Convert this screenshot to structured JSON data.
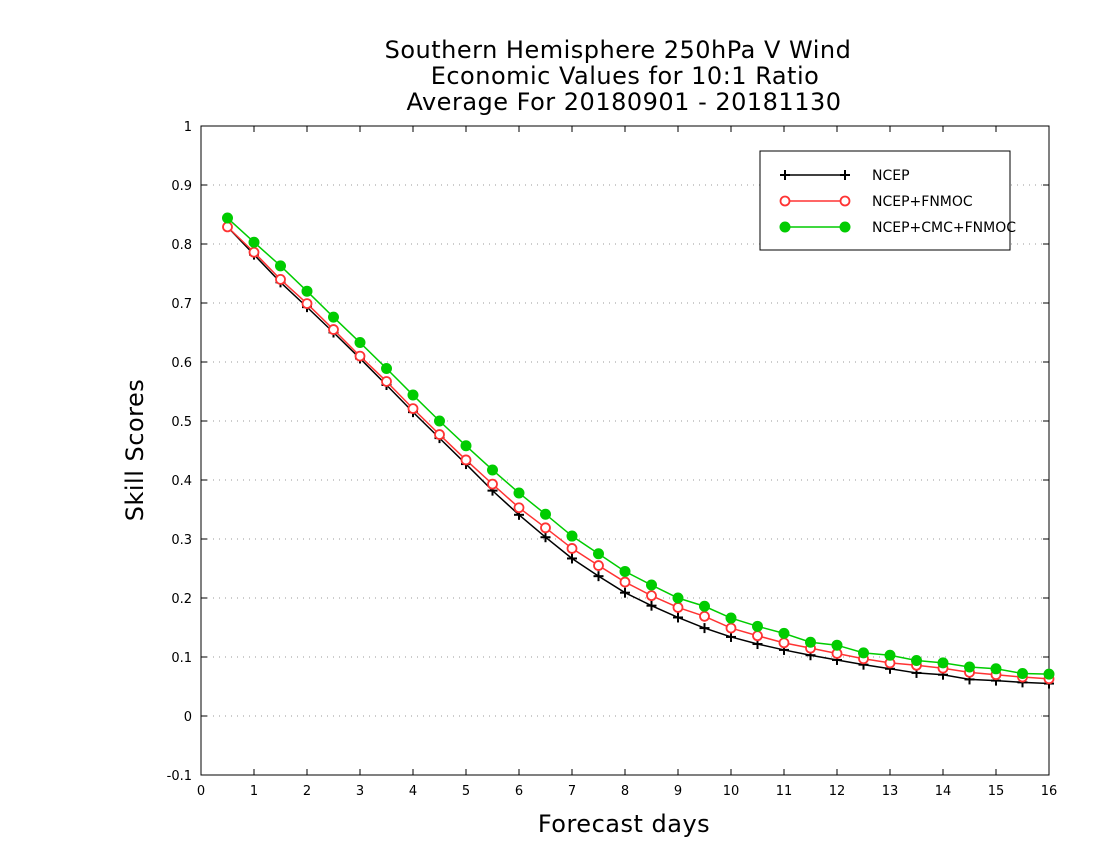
{
  "chart_data": {
    "type": "line",
    "title": [
      "Southern Hemisphere 250hPa V Wind",
      "Economic Values for 10:1 Ratio",
      "Average For 20180901 - 20181130"
    ],
    "xlabel": "Forecast days",
    "ylabel": "Skill Scores",
    "xlim": [
      0,
      16
    ],
    "ylim": [
      -0.1,
      1
    ],
    "x_ticks": [
      0,
      1,
      2,
      3,
      4,
      5,
      6,
      7,
      8,
      9,
      10,
      11,
      12,
      13,
      14,
      15,
      16
    ],
    "y_ticks": [
      -0.1,
      0,
      0.1,
      0.2,
      0.3,
      0.4,
      0.5,
      0.6,
      0.7,
      0.8,
      0.9,
      1
    ],
    "y_tick_labels": [
      "-0.1",
      "0",
      "0.1",
      "0.2",
      "0.3",
      "0.4",
      "0.5",
      "0.6",
      "0.7",
      "0.8",
      "0.9",
      "1"
    ],
    "grid": true,
    "legend_position": "top-right",
    "x": [
      0.5,
      1,
      1.5,
      2,
      2.5,
      3,
      3.5,
      4,
      4.5,
      5,
      5.5,
      6,
      6.5,
      7,
      7.5,
      8,
      8.5,
      9,
      9.5,
      10,
      10.5,
      11,
      11.5,
      12,
      12.5,
      13,
      13.5,
      14,
      14.5,
      15,
      15.5,
      16
    ],
    "series": [
      {
        "name": "NCEP",
        "color": "#000000",
        "marker": "plus",
        "values": [
          0.829,
          0.782,
          0.735,
          0.693,
          0.65,
          0.606,
          0.561,
          0.515,
          0.471,
          0.427,
          0.382,
          0.341,
          0.303,
          0.267,
          0.237,
          0.209,
          0.187,
          0.167,
          0.149,
          0.134,
          0.122,
          0.112,
          0.103,
          0.095,
          0.087,
          0.08,
          0.073,
          0.07,
          0.062,
          0.06,
          0.057,
          0.055
        ]
      },
      {
        "name": "NCEP+FNMOC",
        "color": "#ff3333",
        "marker": "open-circle",
        "values": [
          0.829,
          0.786,
          0.74,
          0.699,
          0.655,
          0.61,
          0.567,
          0.521,
          0.477,
          0.434,
          0.393,
          0.353,
          0.319,
          0.284,
          0.255,
          0.227,
          0.204,
          0.184,
          0.169,
          0.149,
          0.136,
          0.124,
          0.115,
          0.106,
          0.097,
          0.09,
          0.086,
          0.081,
          0.074,
          0.07,
          0.066,
          0.063
        ]
      },
      {
        "name": "NCEP+CMC+FNMOC",
        "color": "#00cc00",
        "marker": "filled-circle",
        "values": [
          0.844,
          0.803,
          0.763,
          0.72,
          0.676,
          0.633,
          0.589,
          0.544,
          0.5,
          0.458,
          0.417,
          0.378,
          0.342,
          0.305,
          0.275,
          0.245,
          0.222,
          0.2,
          0.186,
          0.166,
          0.152,
          0.14,
          0.125,
          0.12,
          0.107,
          0.103,
          0.094,
          0.09,
          0.083,
          0.08,
          0.072,
          0.071
        ]
      }
    ]
  }
}
